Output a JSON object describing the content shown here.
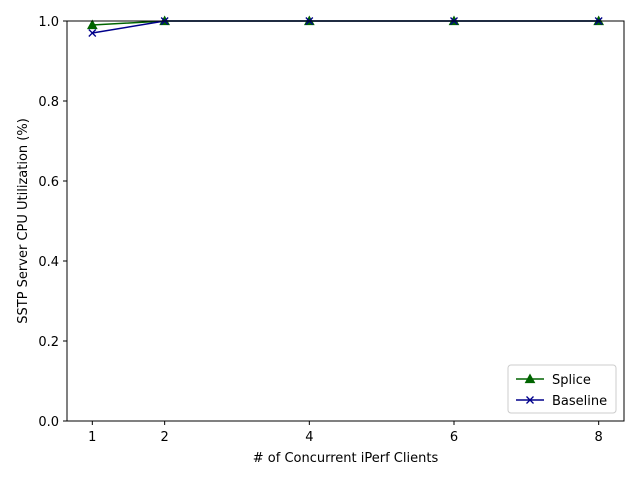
{
  "chart_data": {
    "type": "line",
    "title": "",
    "xlabel": "# of Concurrent iPerf Clients",
    "ylabel": "SSTP Server CPU Utilization (%)",
    "x": [
      1,
      2,
      4,
      6,
      8
    ],
    "xticks": [
      "1",
      "2",
      "4",
      "6",
      "8"
    ],
    "yticks": [
      "0.0",
      "0.2",
      "0.4",
      "0.6",
      "0.8",
      "1.0"
    ],
    "xlim": [
      0.65,
      8.35
    ],
    "ylim": [
      0,
      1
    ],
    "grid": false,
    "legend_position": "bottom-right",
    "series": [
      {
        "name": "Splice",
        "values": [
          0.99,
          1.0,
          1.0,
          1.0,
          1.0
        ],
        "color": "#006400",
        "marker": "triangle"
      },
      {
        "name": "Baseline",
        "values": [
          0.97,
          1.0,
          1.0,
          1.0,
          1.0
        ],
        "color": "#00008b",
        "marker": "x"
      }
    ]
  }
}
